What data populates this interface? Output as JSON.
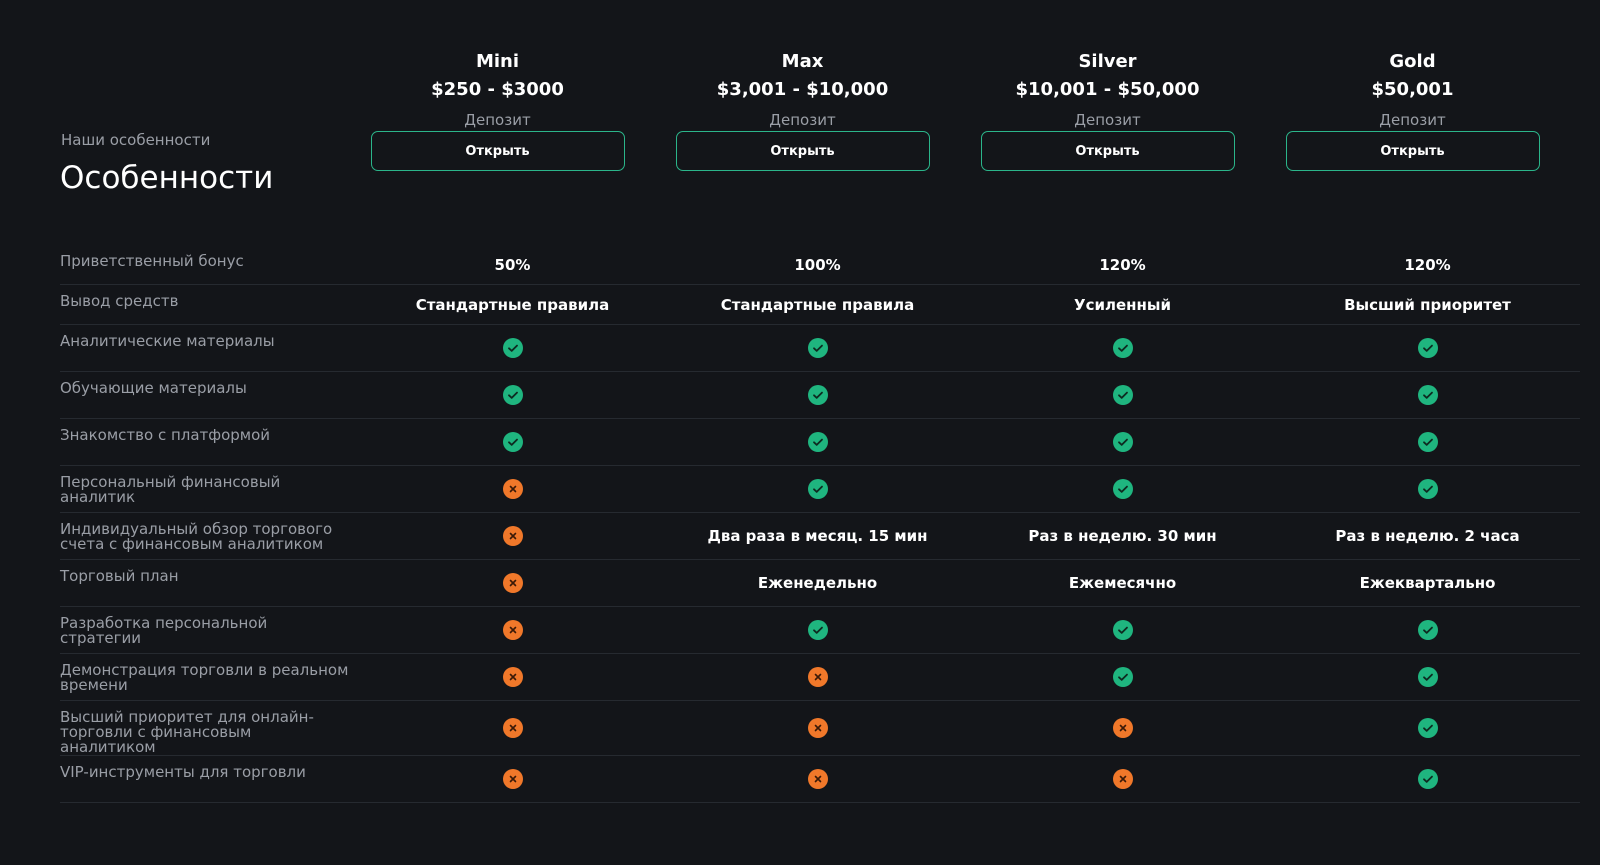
{
  "header": {
    "eyebrow": "Наши особенности",
    "title": "Особенности"
  },
  "plans": [
    {
      "name": "Mini",
      "price": "$250 - $3000",
      "caption": "Депозит",
      "button": "Открыть"
    },
    {
      "name": "Max",
      "price": "$3,001 - $10,000",
      "caption": "Депозит",
      "button": "Открыть"
    },
    {
      "name": "Silver",
      "price": "$10,001 - $50,000",
      "caption": "Депозит",
      "button": "Открыть"
    },
    {
      "name": "Gold",
      "price": "$50,001",
      "caption": "Депозит",
      "button": "Открыть"
    }
  ],
  "features": [
    {
      "label": "Приветственный бонус",
      "values": [
        "50%",
        "100%",
        "120%",
        "120%"
      ]
    },
    {
      "label": "Вывод средств",
      "values": [
        "Стандартные правила",
        "Стандартные правила",
        "Усиленный",
        "Высший приоритет"
      ]
    },
    {
      "label": "Аналитические материалы",
      "values": [
        true,
        true,
        true,
        true
      ]
    },
    {
      "label": "Обучающие материалы",
      "values": [
        true,
        true,
        true,
        true
      ]
    },
    {
      "label": "Знакомство с платформой",
      "values": [
        true,
        true,
        true,
        true
      ]
    },
    {
      "label": "Персональный финансовый аналитик",
      "values": [
        false,
        true,
        true,
        true
      ]
    },
    {
      "label": "Индивидуальный обзор торгового счета с финансовым аналитиком",
      "values": [
        false,
        "Два раза в месяц. 15 мин",
        "Раз в неделю. 30 мин",
        "Раз в неделю. 2 часа"
      ]
    },
    {
      "label": "Торговый план",
      "values": [
        false,
        "Еженедельно",
        "Ежемесячно",
        "Ежеквартально"
      ]
    },
    {
      "label": "Разработка персональной стратегии",
      "values": [
        false,
        true,
        true,
        true
      ]
    },
    {
      "label": "Демонстрация торговли в реальном времени",
      "values": [
        false,
        false,
        true,
        true
      ]
    },
    {
      "label": "Высший приоритет для онлайн-торговли с финансовым аналитиком",
      "values": [
        false,
        false,
        false,
        true
      ]
    },
    {
      "label": "VIP-инструменты для торговли",
      "values": [
        false,
        false,
        false,
        true
      ]
    }
  ]
}
